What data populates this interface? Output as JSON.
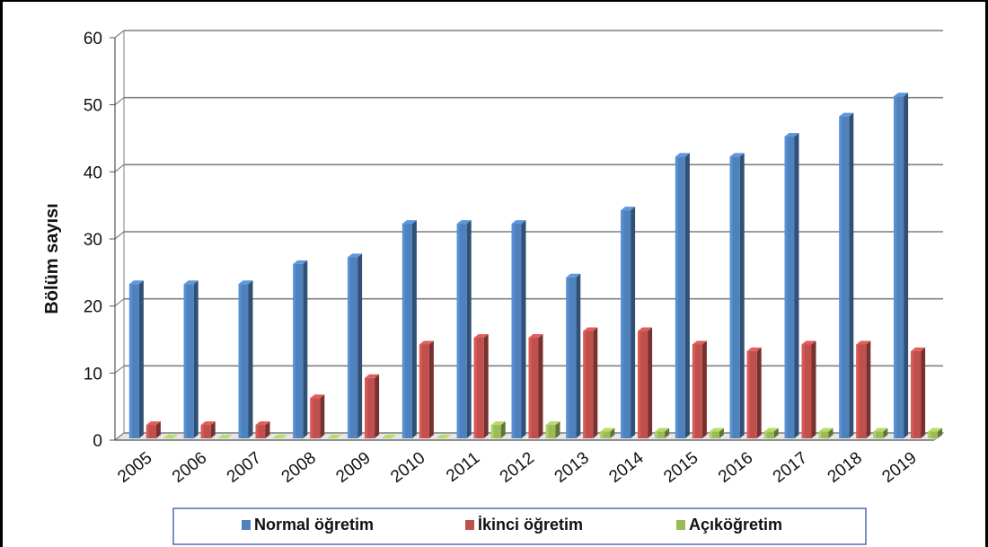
{
  "chart_data": {
    "type": "bar",
    "style": "3d-clustered-column",
    "ylabel": "Bölüm sayısı",
    "xlabel": "",
    "ylim": [
      0,
      60
    ],
    "yticks": [
      "0",
      "10",
      "20",
      "30",
      "40",
      "50",
      "60"
    ],
    "grid": true,
    "legend_position": "bottom",
    "categories": [
      "2005",
      "2006",
      "2007",
      "2008",
      "2009",
      "2010",
      "2011",
      "2012",
      "2013",
      "2014",
      "2015",
      "2016",
      "2017",
      "2018",
      "2019"
    ],
    "series": [
      {
        "name": "Normal öğretim",
        "color": "#4F81BD",
        "values": [
          23,
          23,
          23,
          26,
          27,
          32,
          32,
          32,
          24,
          34,
          42,
          42,
          45,
          48,
          51
        ]
      },
      {
        "name": "İkinci öğretim",
        "color": "#C0504D",
        "values": [
          2,
          2,
          2,
          6,
          9,
          14,
          15,
          15,
          16,
          16,
          14,
          13,
          14,
          14,
          13
        ]
      },
      {
        "name": "Açıköğretim",
        "color": "#9BBB59",
        "values": [
          0,
          0,
          0,
          0,
          0,
          0,
          2,
          2,
          1,
          1,
          1,
          1,
          1,
          1,
          1
        ]
      }
    ]
  }
}
